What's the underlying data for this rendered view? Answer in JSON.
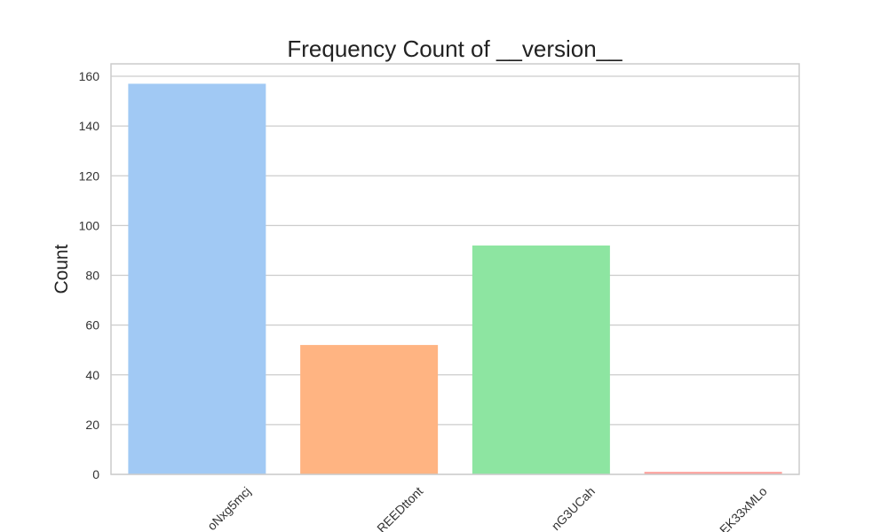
{
  "chart_data": {
    "type": "bar",
    "title": "Frequency Count of __version__",
    "xlabel": "",
    "ylabel": "Count",
    "categories": [
      "oNxg5mcj",
      "REEDttont",
      "nG3UCah",
      "EK33xMLo"
    ],
    "values": [
      157,
      52,
      92,
      1
    ],
    "colors": [
      "#a1c9f4",
      "#ffb482",
      "#8de5a1",
      "#ff9f9b"
    ],
    "ylim": [
      0,
      165
    ],
    "yticks": [
      0,
      20,
      40,
      60,
      80,
      100,
      120,
      140,
      160
    ],
    "grid": true,
    "legend": "none"
  }
}
